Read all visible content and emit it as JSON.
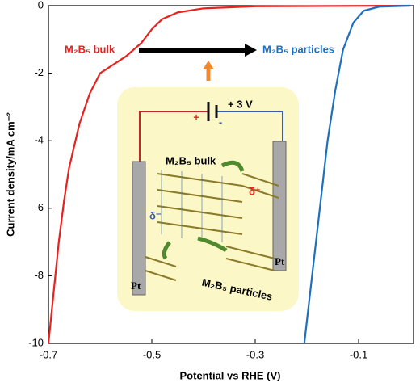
{
  "chart_data": {
    "type": "line",
    "xlabel": "Potential vs RHE (V)",
    "ylabel": "Current density/mA cm⁻²",
    "xlim": [
      -0.7,
      0
    ],
    "ylim": [
      -10,
      0
    ],
    "xticks": [
      -0.7,
      -0.5,
      -0.3,
      -0.1
    ],
    "yticks": [
      0,
      -2,
      -4,
      -6,
      -8,
      -10
    ],
    "series": [
      {
        "color": "#e8221f",
        "x": [
          -0.7,
          -0.69,
          -0.68,
          -0.67,
          -0.66,
          -0.64,
          -0.62,
          -0.6,
          -0.57,
          -0.55,
          -0.52,
          -0.5,
          -0.48,
          -0.45,
          -0.4,
          -0.3,
          0
        ],
        "values": [
          -10,
          -8.5,
          -7,
          -5.8,
          -4.8,
          -3.5,
          -2.6,
          -2.0,
          -1.7,
          -1.5,
          -1.1,
          -0.7,
          -0.4,
          -0.2,
          -0.08,
          -0.02,
          0
        ]
      },
      {
        "color": "#1f6fc0",
        "x": [
          -0.205,
          -0.19,
          -0.175,
          -0.16,
          -0.145,
          -0.13,
          -0.11,
          -0.09,
          -0.06,
          0
        ],
        "values": [
          -10,
          -8,
          -6,
          -4,
          -2.5,
          -1.3,
          -0.5,
          -0.15,
          -0.03,
          0
        ]
      }
    ],
    "annotations": {
      "bulk_label": "M₂B₅ bulk",
      "particles_label": "M₂B₅ particles",
      "voltage": "+ 3 V",
      "plus": "+",
      "minus": "-",
      "inset_bulk": "M₂B₅ bulk",
      "inset_particles": "M₂B₅ particles",
      "delta_minus": "δ⁻",
      "delta_plus": "δ⁺",
      "pt_left": "Pt",
      "pt_right": "Pt"
    }
  }
}
